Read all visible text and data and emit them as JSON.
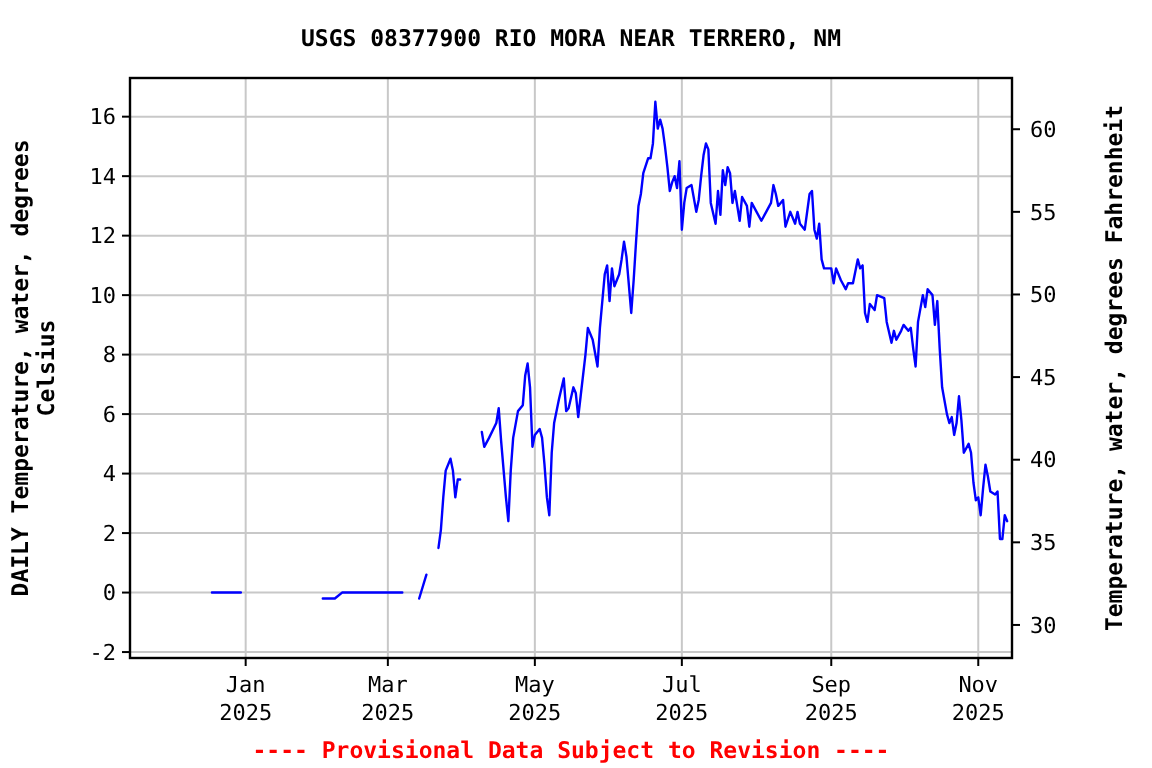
{
  "chart_data": {
    "type": "line",
    "title": "USGS 08377900 RIO MORA NEAR TERRERO, NM",
    "ylabel": "DAILY Temperature, water, degrees Celsius",
    "y2label": "Temperature, water, degrees Fahrenheit",
    "annotations": [
      "---- Provisional Data Subject to Revision ----"
    ],
    "x": [
      "2024-12-18",
      "2024-12-30",
      "2025-01-15",
      "2025-02-02",
      "2025-02-07",
      "2025-02-10",
      "2025-02-14",
      "2025-02-18",
      "2025-02-24",
      "2025-02-28",
      "2025-03-03",
      "2025-03-07",
      "2025-03-10",
      "2025-03-14",
      "2025-03-17",
      "2025-03-19",
      "2025-03-22",
      "2025-03-23",
      "2025-03-24",
      "2025-03-25",
      "2025-03-27",
      "2025-03-28",
      "2025-03-29",
      "2025-03-30",
      "2025-03-31",
      "2025-04-05",
      "2025-04-09",
      "2025-04-10",
      "2025-04-12",
      "2025-04-15",
      "2025-04-16",
      "2025-04-17",
      "2025-04-19",
      "2025-04-20",
      "2025-04-21",
      "2025-04-22",
      "2025-04-24",
      "2025-04-26",
      "2025-04-27",
      "2025-04-28",
      "2025-04-29",
      "2025-04-30",
      "2025-05-01",
      "2025-05-03",
      "2025-05-04",
      "2025-05-05",
      "2025-05-06",
      "2025-05-07",
      "2025-05-08",
      "2025-05-09",
      "2025-05-11",
      "2025-05-13",
      "2025-05-14",
      "2025-05-15",
      "2025-05-17",
      "2025-05-18",
      "2025-05-19",
      "2025-05-20",
      "2025-05-22",
      "2025-05-23",
      "2025-05-25",
      "2025-05-27",
      "2025-05-28",
      "2025-05-30",
      "2025-05-31",
      "2025-06-01",
      "2025-06-02",
      "2025-06-03",
      "2025-06-05",
      "2025-06-06",
      "2025-06-07",
      "2025-06-08",
      "2025-06-10",
      "2025-06-11",
      "2025-06-12",
      "2025-06-13",
      "2025-06-14",
      "2025-06-15",
      "2025-06-17",
      "2025-06-18",
      "2025-06-19",
      "2025-06-20",
      "2025-06-21",
      "2025-06-22",
      "2025-06-23",
      "2025-06-24",
      "2025-06-25",
      "2025-06-26",
      "2025-06-27",
      "2025-06-28",
      "2025-06-29",
      "2025-06-30",
      "2025-07-01",
      "2025-07-02",
      "2025-07-03",
      "2025-07-05",
      "2025-07-07",
      "2025-07-08",
      "2025-07-09",
      "2025-07-10",
      "2025-07-11",
      "2025-07-12",
      "2025-07-13",
      "2025-07-15",
      "2025-07-16",
      "2025-07-17",
      "2025-07-18",
      "2025-07-19",
      "2025-07-20",
      "2025-07-21",
      "2025-07-22",
      "2025-07-23",
      "2025-07-25",
      "2025-07-26",
      "2025-07-28",
      "2025-07-29",
      "2025-07-30",
      "2025-08-01",
      "2025-08-03",
      "2025-08-05",
      "2025-08-07",
      "2025-08-08",
      "2025-08-09",
      "2025-08-10",
      "2025-08-12",
      "2025-08-13",
      "2025-08-15",
      "2025-08-17",
      "2025-08-18",
      "2025-08-19",
      "2025-08-21",
      "2025-08-23",
      "2025-08-24",
      "2025-08-25",
      "2025-08-26",
      "2025-08-27",
      "2025-08-28",
      "2025-08-29",
      "2025-09-01",
      "2025-09-02",
      "2025-09-03",
      "2025-09-05",
      "2025-09-07",
      "2025-09-08",
      "2025-09-10",
      "2025-09-12",
      "2025-09-13",
      "2025-09-14",
      "2025-09-15",
      "2025-09-16",
      "2025-09-17",
      "2025-09-19",
      "2025-09-20",
      "2025-09-23",
      "2025-09-24",
      "2025-09-26",
      "2025-09-27",
      "2025-09-28",
      "2025-09-30",
      "2025-10-01",
      "2025-10-03",
      "2025-10-04",
      "2025-10-05",
      "2025-10-06",
      "2025-10-07",
      "2025-10-09",
      "2025-10-10",
      "2025-10-11",
      "2025-10-13",
      "2025-10-14",
      "2025-10-15",
      "2025-10-16",
      "2025-10-17",
      "2025-10-19",
      "2025-10-20",
      "2025-10-21",
      "2025-10-22",
      "2025-10-23",
      "2025-10-24",
      "2025-10-25",
      "2025-10-26",
      "2025-10-28",
      "2025-10-29",
      "2025-10-30",
      "2025-10-31",
      "2025-11-01",
      "2025-11-02",
      "2025-11-03",
      "2025-11-04",
      "2025-11-05",
      "2025-11-06",
      "2025-11-08",
      "2025-11-09",
      "2025-11-10",
      "2025-11-11",
      "2025-11-12",
      "2025-11-13"
    ],
    "series": [
      {
        "color": "#0000ff",
        "values": [
          0,
          0,
          null,
          -0.2,
          -0.2,
          0,
          0,
          0,
          0,
          0,
          0,
          0,
          null,
          -0.2,
          0.6,
          null,
          1.5,
          2.1,
          3.2,
          4.1,
          4.5,
          4.1,
          3.2,
          3.8,
          3.8,
          null,
          5.4,
          4.9,
          5.2,
          5.7,
          6.2,
          5.1,
          3.2,
          2.4,
          4.1,
          5.2,
          6.1,
          6.3,
          7.3,
          7.7,
          6.9,
          4.9,
          5.3,
          5.5,
          5.2,
          4.3,
          3.2,
          2.6,
          4.7,
          5.7,
          6.5,
          7.2,
          6.1,
          6.2,
          6.9,
          6.7,
          5.9,
          6.6,
          8.0,
          8.9,
          8.5,
          7.6,
          8.9,
          10.7,
          11.0,
          9.8,
          10.9,
          10.3,
          10.7,
          11.2,
          11.8,
          11.3,
          9.4,
          10.5,
          11.8,
          13.0,
          13.4,
          14.1,
          14.6,
          14.6,
          15.1,
          16.5,
          15.6,
          15.9,
          15.6,
          15.0,
          14.3,
          13.5,
          13.8,
          14.0,
          13.6,
          14.5,
          12.2,
          13.1,
          13.6,
          13.7,
          12.8,
          13.2,
          14.0,
          14.7,
          15.1,
          14.9,
          13.1,
          12.4,
          13.5,
          12.7,
          14.2,
          13.7,
          14.3,
          14.1,
          13.1,
          13.5,
          12.5,
          13.3,
          13.0,
          12.3,
          13.1,
          12.8,
          12.5,
          12.8,
          13.1,
          13.7,
          13.4,
          13.0,
          13.2,
          12.3,
          12.8,
          12.4,
          12.8,
          12.4,
          12.2,
          13.4,
          13.5,
          12.2,
          11.9,
          12.4,
          11.2,
          10.9,
          10.9,
          10.4,
          10.9,
          10.5,
          10.2,
          10.4,
          10.4,
          11.2,
          10.9,
          11.0,
          9.4,
          9.1,
          9.7,
          9.5,
          10.0,
          9.9,
          9.1,
          8.4,
          8.8,
          8.5,
          8.8,
          9.0,
          8.8,
          8.9,
          8.2,
          7.6,
          9.1,
          10.0,
          9.6,
          10.2,
          10.0,
          9.0,
          9.8,
          8.2,
          6.9,
          6.0,
          5.7,
          5.9,
          5.3,
          5.7,
          6.6,
          5.8,
          4.7,
          5.0,
          4.7,
          3.7,
          3.1,
          3.2,
          2.6,
          3.5,
          4.3,
          3.9,
          3.4,
          3.3,
          3.4,
          1.8,
          1.8,
          2.6,
          2.4
        ]
      }
    ],
    "xlim": [
      "2024-11-14",
      "2025-11-15"
    ],
    "xticks": [
      {
        "value": "2025-01-01",
        "label": "Jan 2025"
      },
      {
        "value": "2025-03-01",
        "label": "Mar 2025"
      },
      {
        "value": "2025-05-01",
        "label": "May 2025"
      },
      {
        "value": "2025-07-01",
        "label": "Jul 2025"
      },
      {
        "value": "2025-09-01",
        "label": "Sep 2025"
      },
      {
        "value": "2025-11-01",
        "label": "Nov 2025"
      }
    ],
    "ylim": [
      -2.2,
      17.3
    ],
    "yticks": [
      -2,
      0,
      2,
      4,
      6,
      8,
      10,
      12,
      14,
      16
    ],
    "y2lim": [
      28.0,
      63.1
    ],
    "y2ticks": [
      30,
      35,
      40,
      45,
      50,
      55,
      60
    ],
    "grid": true
  }
}
